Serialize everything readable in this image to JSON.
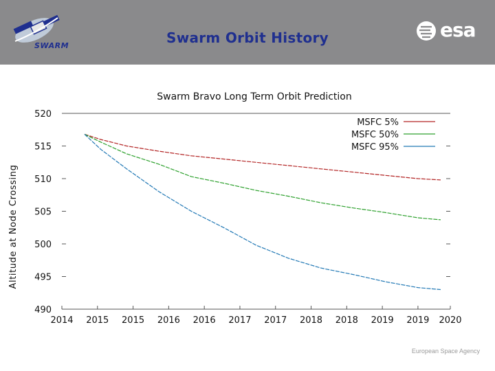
{
  "header": {
    "title": "Swarm Orbit History",
    "left_logo_text": "SWARM",
    "right_logo_text": "esa",
    "background_color": "#8a8a8c",
    "title_color": "#1f2f8f"
  },
  "footer": {
    "agency_text": "European Space Agency"
  },
  "chart_data": {
    "type": "line",
    "title": "Swarm Bravo Long Term Orbit Prediction",
    "xlabel": "",
    "ylabel": "Altitude at Node Crossing",
    "xlim": [
      2014.0,
      2020.0
    ],
    "ylim": [
      490,
      520
    ],
    "x_tick_values": [
      2014.0,
      2014.55,
      2015.1,
      2015.65,
      2016.2,
      2016.75,
      2017.3,
      2017.85,
      2018.4,
      2018.95,
      2019.5,
      2020.0
    ],
    "x_tick_labels": [
      "2014",
      "2015",
      "2015",
      "2016",
      "2016",
      "2017",
      "2017",
      "2018",
      "2018",
      "2019",
      "2019",
      "2020"
    ],
    "y_ticks": [
      490,
      495,
      500,
      505,
      510,
      515,
      520
    ],
    "y_tick_labels": [
      "490",
      "495",
      "500",
      "505",
      "510",
      "515",
      "520"
    ],
    "grid": false,
    "legend_position": "top-right",
    "series": [
      {
        "name": "MSFC 5%",
        "color": "#b22222",
        "x": [
          2014.35,
          2014.6,
          2015.0,
          2015.5,
          2016.0,
          2016.5,
          2017.0,
          2017.5,
          2018.0,
          2018.5,
          2019.0,
          2019.5,
          2019.85
        ],
        "values": [
          516.8,
          516.0,
          515.0,
          514.2,
          513.5,
          513.0,
          512.5,
          512.0,
          511.5,
          511.0,
          510.5,
          510.0,
          509.8
        ]
      },
      {
        "name": "MSFC 50%",
        "color": "#2ca02c",
        "x": [
          2014.35,
          2014.6,
          2015.0,
          2015.5,
          2016.0,
          2016.5,
          2017.0,
          2017.5,
          2018.0,
          2018.5,
          2019.0,
          2019.5,
          2019.85
        ],
        "values": [
          516.8,
          515.6,
          513.8,
          512.2,
          510.3,
          509.3,
          508.2,
          507.3,
          506.3,
          505.5,
          504.8,
          504.0,
          503.7
        ]
      },
      {
        "name": "MSFC 95%",
        "color": "#1f77b4",
        "x": [
          2014.35,
          2014.6,
          2015.0,
          2015.5,
          2016.0,
          2016.5,
          2017.0,
          2017.5,
          2018.0,
          2018.5,
          2019.0,
          2019.5,
          2019.85
        ],
        "values": [
          516.8,
          514.5,
          511.5,
          508.0,
          505.0,
          502.5,
          499.8,
          497.8,
          496.3,
          495.3,
          494.2,
          493.3,
          493.0
        ]
      }
    ]
  }
}
